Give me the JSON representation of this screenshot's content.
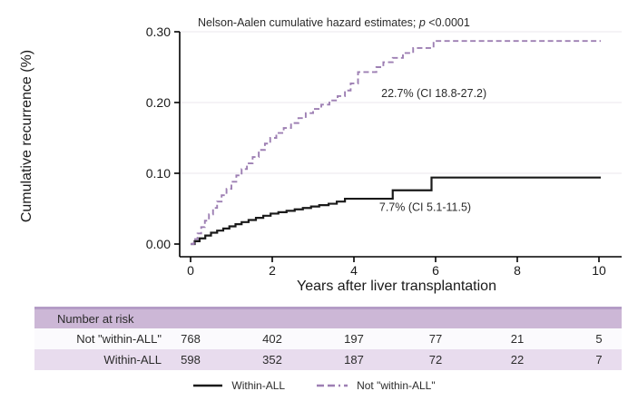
{
  "colors": {
    "black_line": "#1a1a1a",
    "purple_line": "#9d7fb3",
    "grid": "#efecf1",
    "axis": "#000000",
    "table_top_strip": "#b49cc6",
    "table_header_bg": "#ccb7d6",
    "table_row1_bg": "#fbfafd",
    "table_row2_bg": "#e8dcee",
    "text": "#2b2b2b"
  },
  "chart_data": {
    "type": "line",
    "step": true,
    "title_parts": {
      "prefix": "Nelson-Aalen cumulative hazard estimates; ",
      "italic": "p",
      "suffix": " <0.0001"
    },
    "xlabel": "Years after liver transplantation",
    "ylabel": "Cumulative recurrence (%)",
    "xlim": [
      0,
      10
    ],
    "ylim": [
      0,
      0.3
    ],
    "xticks": [
      0,
      2,
      4,
      6,
      8,
      10
    ],
    "xtick_labels": [
      "0",
      "2",
      "4",
      "6",
      "8",
      "10"
    ],
    "ytick_values": [
      0,
      0.1,
      0.2,
      0.3
    ],
    "ytick_labels": [
      "0.00",
      "0.10",
      "0.20",
      "0.30"
    ],
    "gridlines_y": [
      0.1,
      0.2,
      0.3
    ],
    "grid": true,
    "legend_position": "bottom-center",
    "series": [
      {
        "name": "Within-ALL",
        "style": "solid",
        "final_estimate": "7.7% (CI 5.1-11.5)",
        "points": [
          [
            0,
            0
          ],
          [
            0.1,
            0.004
          ],
          [
            0.22,
            0.008
          ],
          [
            0.36,
            0.012
          ],
          [
            0.5,
            0.016
          ],
          [
            0.65,
            0.019
          ],
          [
            0.8,
            0.022
          ],
          [
            0.95,
            0.025
          ],
          [
            1.1,
            0.028
          ],
          [
            1.25,
            0.031
          ],
          [
            1.42,
            0.034
          ],
          [
            1.6,
            0.037
          ],
          [
            1.78,
            0.04
          ],
          [
            1.96,
            0.043
          ],
          [
            2.15,
            0.045
          ],
          [
            2.35,
            0.047
          ],
          [
            2.55,
            0.049
          ],
          [
            2.75,
            0.051
          ],
          [
            2.95,
            0.053
          ],
          [
            3.15,
            0.055
          ],
          [
            3.38,
            0.057
          ],
          [
            3.58,
            0.06
          ],
          [
            3.78,
            0.064
          ],
          [
            4.95,
            0.076
          ],
          [
            5.9,
            0.094
          ]
        ]
      },
      {
        "name": "Not \"within-ALL\"",
        "style": "dashed",
        "final_estimate": "22.7% (CI 18.8-27.2)",
        "points": [
          [
            0,
            0
          ],
          [
            0.08,
            0.007
          ],
          [
            0.17,
            0.015
          ],
          [
            0.26,
            0.024
          ],
          [
            0.35,
            0.033
          ],
          [
            0.45,
            0.042
          ],
          [
            0.55,
            0.051
          ],
          [
            0.65,
            0.06
          ],
          [
            0.76,
            0.069
          ],
          [
            0.88,
            0.078
          ],
          [
            1.0,
            0.088
          ],
          [
            1.12,
            0.097
          ],
          [
            1.25,
            0.106
          ],
          [
            1.38,
            0.114
          ],
          [
            1.52,
            0.123
          ],
          [
            1.67,
            0.133
          ],
          [
            1.82,
            0.142
          ],
          [
            1.95,
            0.15
          ],
          [
            2.1,
            0.157
          ],
          [
            2.28,
            0.164
          ],
          [
            2.46,
            0.171
          ],
          [
            2.64,
            0.178
          ],
          [
            2.82,
            0.185
          ],
          [
            3.0,
            0.191
          ],
          [
            3.2,
            0.197
          ],
          [
            3.4,
            0.203
          ],
          [
            3.6,
            0.209
          ],
          [
            3.78,
            0.217
          ],
          [
            3.92,
            0.227
          ],
          [
            4.1,
            0.243
          ],
          [
            4.55,
            0.25
          ],
          [
            4.72,
            0.257
          ],
          [
            4.95,
            0.263
          ],
          [
            5.2,
            0.27
          ],
          [
            5.45,
            0.277
          ],
          [
            5.95,
            0.287
          ]
        ]
      }
    ],
    "annotations": [
      {
        "text": "22.7% (CI 18.8-27.2)",
        "x": 4.67,
        "y": 0.213
      },
      {
        "text": "7.7% (CI 5.1-11.5)",
        "x": 4.62,
        "y": 0.052
      }
    ]
  },
  "risk_table": {
    "header": "Number at risk",
    "rows": [
      {
        "label": "Not \"within-ALL\"",
        "values": [
          "768",
          "402",
          "197",
          "77",
          "21",
          "5"
        ]
      },
      {
        "label": "Within-ALL",
        "values": [
          "598",
          "352",
          "187",
          "72",
          "22",
          "7"
        ]
      }
    ]
  },
  "legend": {
    "items": [
      {
        "label": "Within-ALL",
        "style": "solid",
        "color": "#1a1a1a"
      },
      {
        "label": "Not \"within-ALL\"",
        "style": "dashed",
        "color": "#9d7fb3"
      }
    ]
  }
}
